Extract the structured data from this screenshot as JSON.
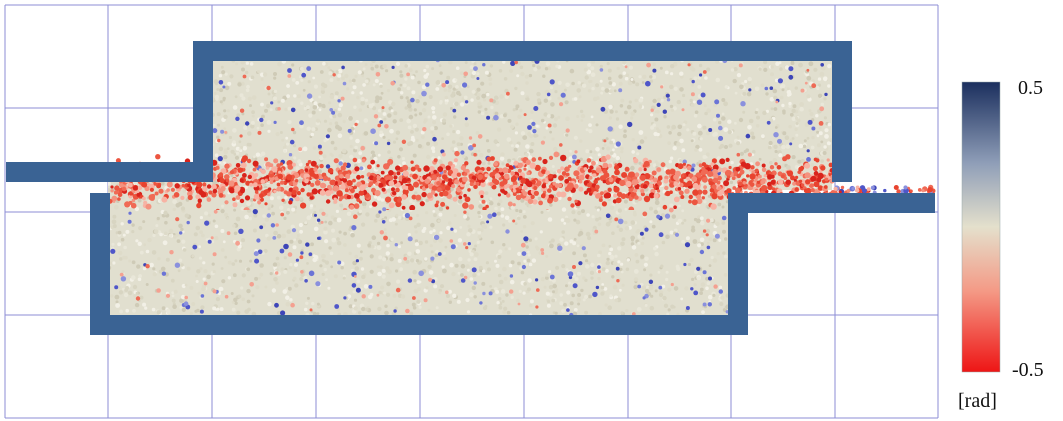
{
  "colorbar": {
    "max_label": "0.5",
    "min_label": "-0.5",
    "unit_label": "[rad]",
    "colors": [
      "#1b2f5e",
      "#8f9eb8",
      "#e4e0cc",
      "#f49a86",
      "#ee1515"
    ]
  },
  "scene": {
    "wall_color": "#3a6394",
    "grain_base_color": "#e1dfcf",
    "grid_line_color": "#8c8ed6",
    "band_color": "#e43a2e",
    "blue_grain_color": "#4f56c9"
  }
}
